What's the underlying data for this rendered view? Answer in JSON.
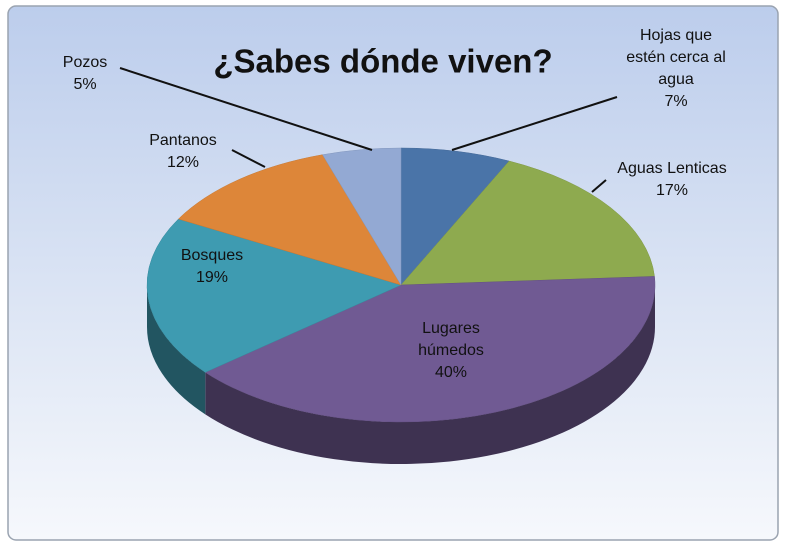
{
  "chart_data": {
    "type": "pie",
    "title": "¿Sabes dónde viven?",
    "categories": [
      "Hojas que estén cerca al agua",
      "Aguas Lenticas",
      "Lugares húmedos",
      "Bosques",
      "Pantanos",
      "Pozos"
    ],
    "values": [
      7,
      17,
      40,
      19,
      12,
      5
    ],
    "value_labels": [
      "7%",
      "17%",
      "40%",
      "19%",
      "12%",
      "5%"
    ],
    "colors": [
      "#4a74a8",
      "#8eaa4f",
      "#705a93",
      "#3e9bb1",
      "#dd8639",
      "#93a9d3"
    ]
  }
}
